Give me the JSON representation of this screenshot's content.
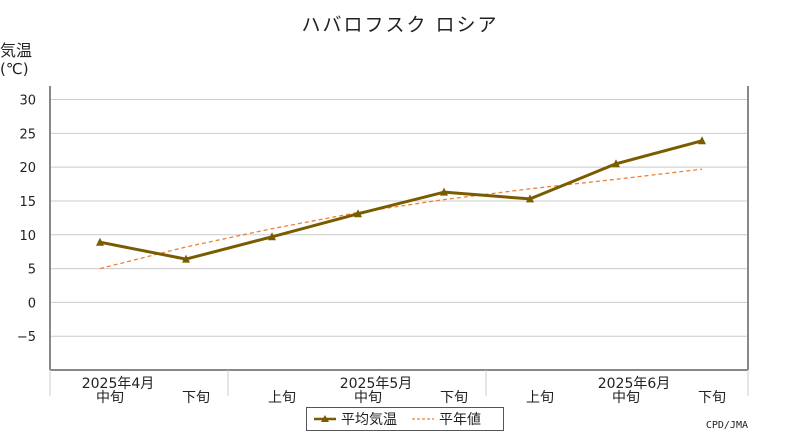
{
  "page": {
    "title": "ハバロフスク ロシア",
    "ylabel": "気温",
    "yunit": "(℃)",
    "source": "CPD/JMA"
  },
  "legend": {
    "avg_label": "平均気温",
    "normal_label": "平年値"
  },
  "colors": {
    "avg": "#7a5c00",
    "normal": "#f08030",
    "grid": "#cccccc",
    "frame": "#888888"
  },
  "chart_data": {
    "type": "line",
    "title": "ハバロフスク ロシア",
    "ylabel": "気温(℃)",
    "ylim": [
      -10,
      32
    ],
    "yticks": [
      30,
      25,
      20,
      15,
      10,
      5,
      0,
      -5
    ],
    "ytick_labels": [
      "30",
      "25",
      "20",
      "15",
      "10",
      "5",
      "0",
      "−5"
    ],
    "grid": true,
    "legend_position": "bottom-center",
    "categories": [
      "中旬",
      "下旬",
      "上旬",
      "中旬",
      "下旬",
      "上旬",
      "中旬",
      "下旬"
    ],
    "month_labels": [
      {
        "label": "2025年4月",
        "index": 0
      },
      {
        "label": "2025年5月",
        "index": 3
      },
      {
        "label": "2025年6月",
        "index": 6
      }
    ],
    "series": [
      {
        "name": "平均気温",
        "style": "solid-triangle",
        "values": [
          8.9,
          6.4,
          9.7,
          13.1,
          16.3,
          15.3,
          20.5,
          23.9
        ]
      },
      {
        "name": "平年値",
        "style": "dashed",
        "values": [
          5.0,
          8.2,
          10.9,
          13.3,
          15.2,
          16.8,
          18.2,
          19.7
        ]
      }
    ]
  }
}
